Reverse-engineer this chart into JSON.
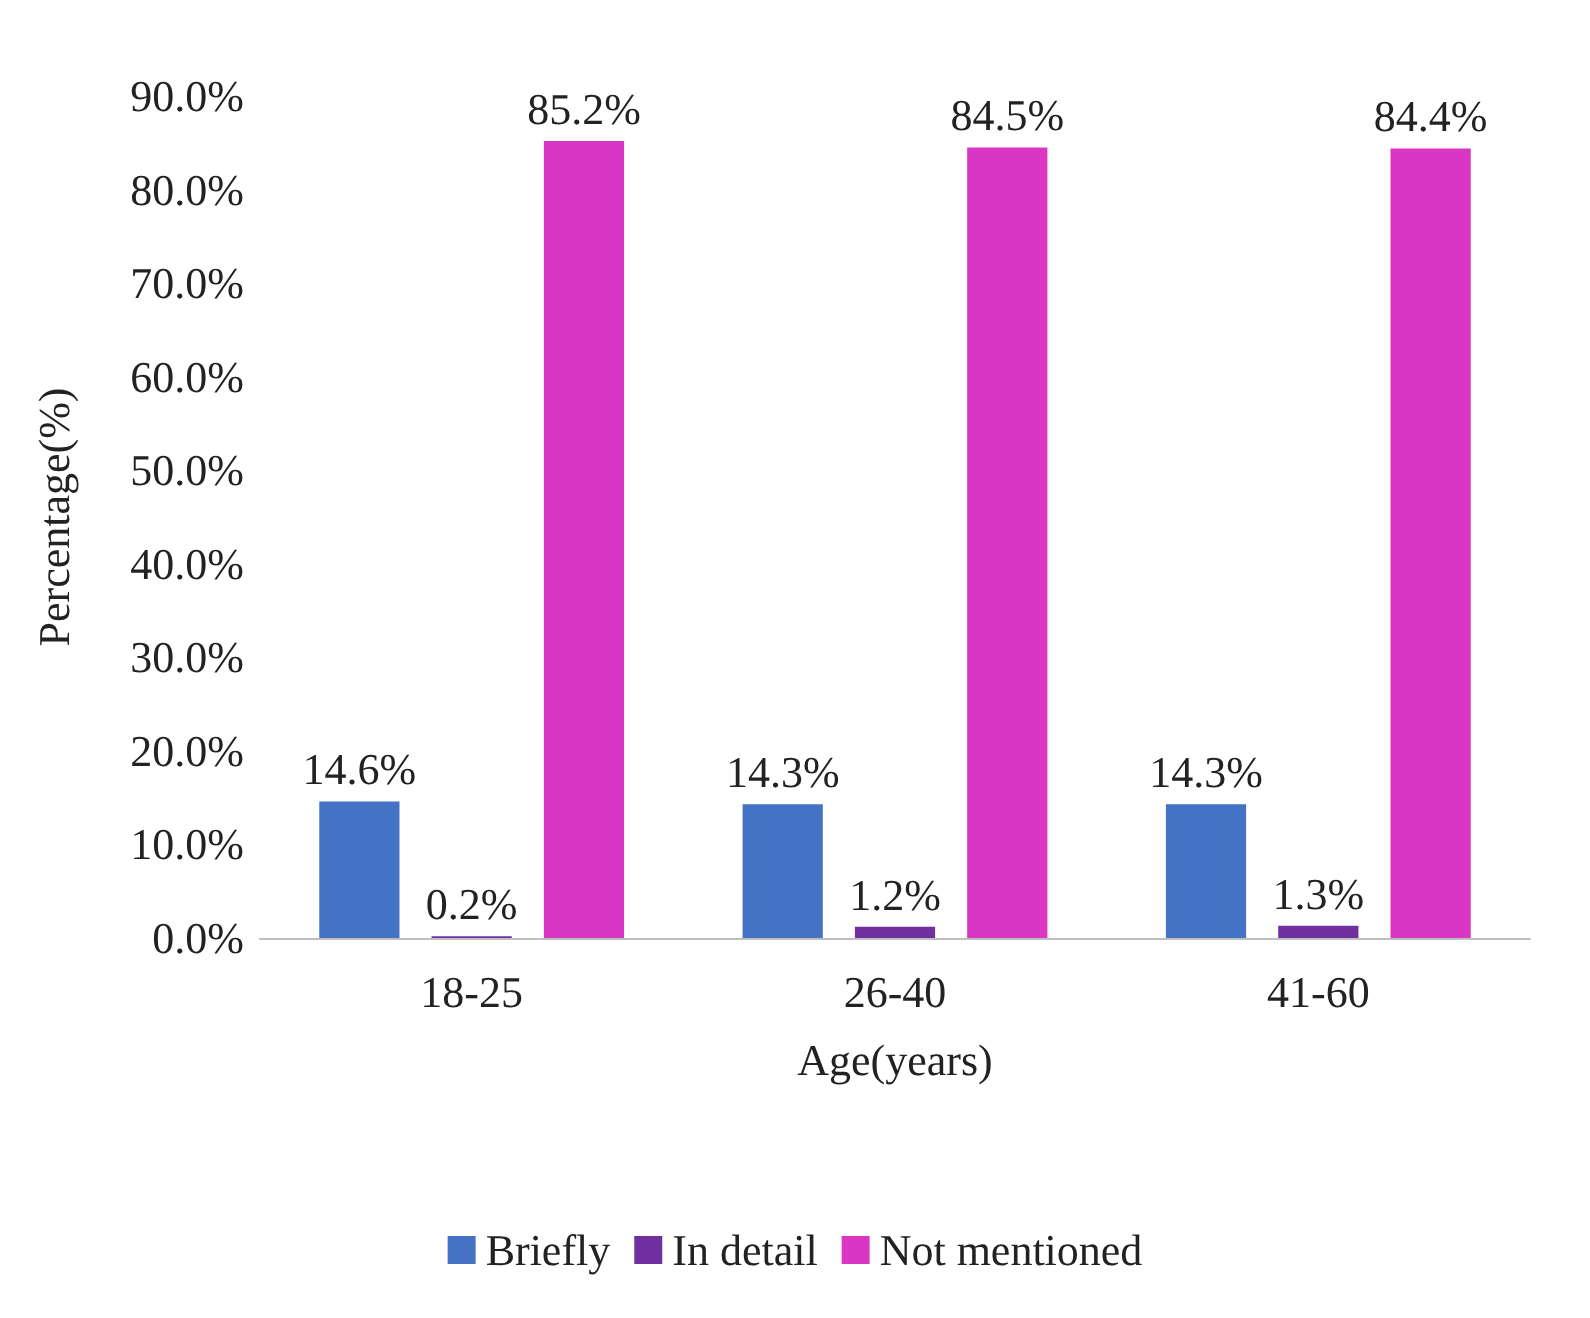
{
  "chart_data": {
    "type": "bar",
    "xlabel": "Age(years)",
    "ylabel": "Percentage(%)",
    "categories": [
      "18-25",
      "26-40",
      "41-60"
    ],
    "series": [
      {
        "name": "Briefly",
        "color": "#4472c4",
        "values": [
          14.6,
          14.3,
          14.3
        ],
        "value_labels": [
          "14.6%",
          "14.3%",
          "14.3%"
        ]
      },
      {
        "name": "In detail",
        "color": "#7030a0",
        "values": [
          0.2,
          1.2,
          1.3
        ],
        "value_labels": [
          "0.2%",
          "1.2%",
          "1.3%"
        ]
      },
      {
        "name": "Not mentioned",
        "color": "#d936c3",
        "values": [
          85.2,
          84.5,
          84.4
        ],
        "value_labels": [
          "85.2%",
          "84.5%",
          "84.4%"
        ]
      }
    ],
    "ylim": [
      0,
      90
    ],
    "yticks": [
      {
        "value": 0,
        "label": "0.0%"
      },
      {
        "value": 10,
        "label": "10.0%"
      },
      {
        "value": 20,
        "label": "20.0%"
      },
      {
        "value": 30,
        "label": "30.0%"
      },
      {
        "value": 40,
        "label": "40.0%"
      },
      {
        "value": 50,
        "label": "50.0%"
      },
      {
        "value": 60,
        "label": "60.0%"
      },
      {
        "value": 70,
        "label": "70.0%"
      },
      {
        "value": 80,
        "label": "80.0%"
      },
      {
        "value": 90,
        "label": "90.0%"
      }
    ],
    "grid": false,
    "legend": "bottom"
  }
}
